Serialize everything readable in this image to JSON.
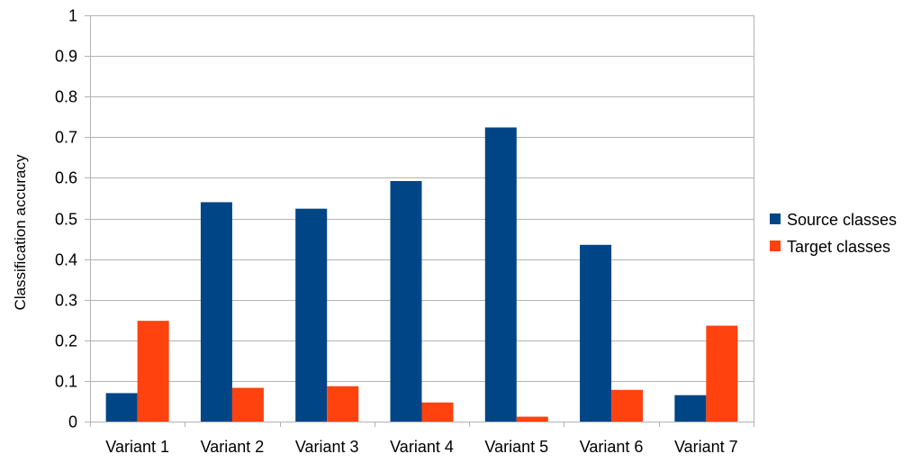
{
  "chart_data": {
    "type": "bar",
    "title": "",
    "xlabel": "",
    "ylabel": "Classification accuracy",
    "ylim": [
      0,
      1
    ],
    "yticks": [
      "0",
      "0.1",
      "0.2",
      "0.3",
      "0.4",
      "0.5",
      "0.6",
      "0.7",
      "0.8",
      "0.9",
      "1"
    ],
    "ytick_values": [
      0,
      0.1,
      0.2,
      0.3,
      0.4,
      0.5,
      0.6,
      0.7,
      0.8,
      0.9,
      1
    ],
    "grid": true,
    "legend_position": "right",
    "categories": [
      "Variant 1",
      "Variant 2",
      "Variant 3",
      "Variant 4",
      "Variant 5",
      "Variant 6",
      "Variant 7"
    ],
    "series": [
      {
        "name": "Source classes",
        "color": "#004586",
        "values": [
          0.07,
          0.54,
          0.524,
          0.592,
          0.724,
          0.435,
          0.065
        ]
      },
      {
        "name": "Target classes",
        "color": "#ff420e",
        "values": [
          0.248,
          0.083,
          0.087,
          0.047,
          0.012,
          0.078,
          0.236
        ]
      }
    ]
  }
}
